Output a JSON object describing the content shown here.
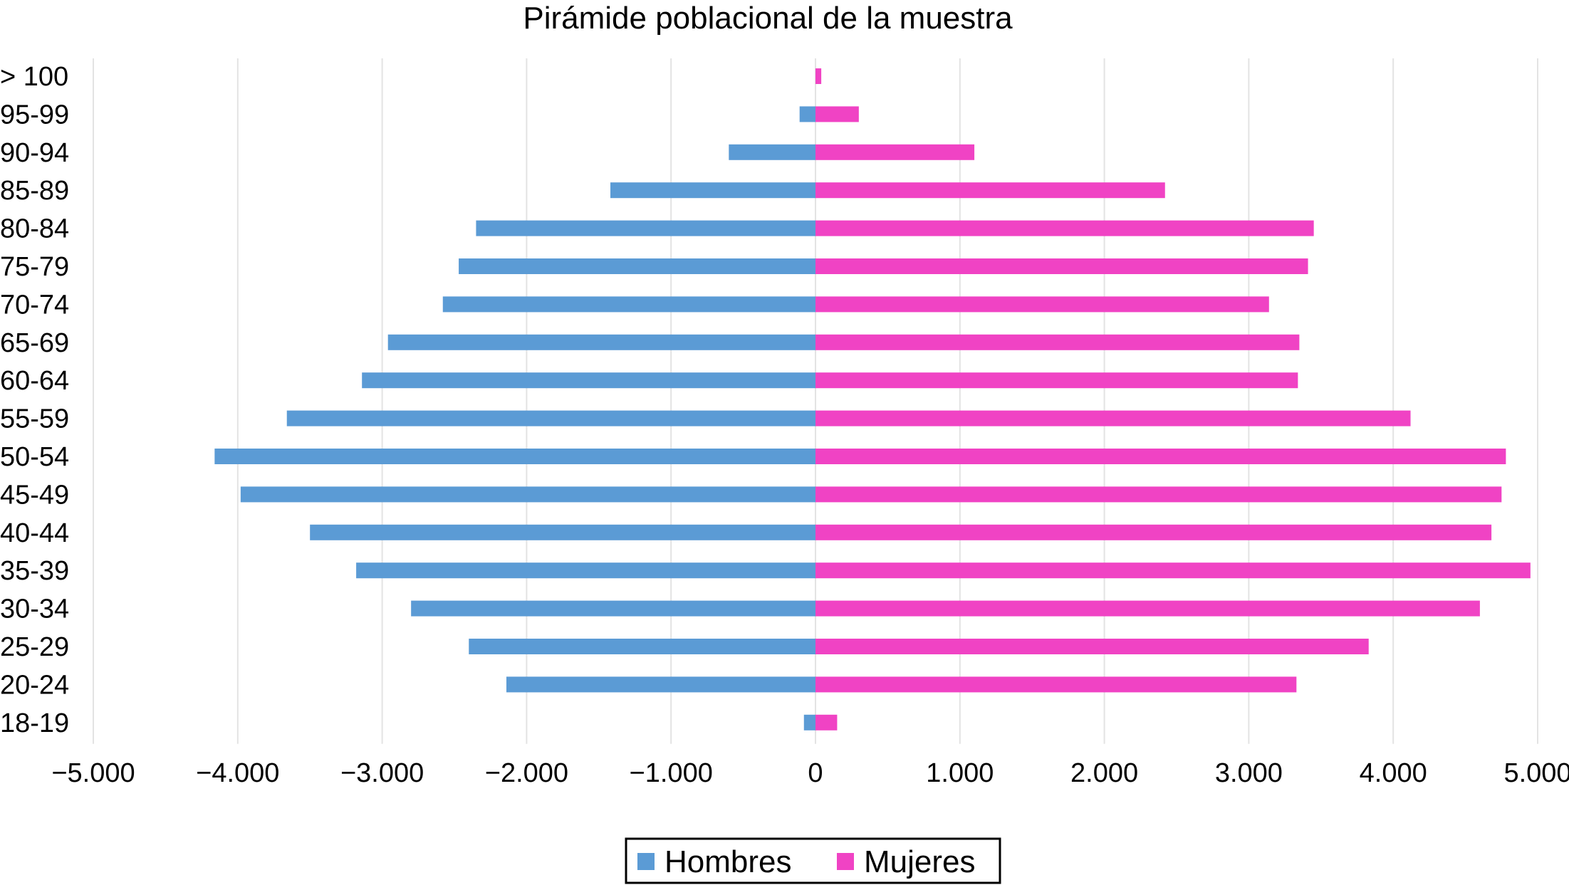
{
  "chart_data": {
    "type": "bar",
    "orientation": "horizontal",
    "title": "Pirámide poblacional de la muestra",
    "categories": [
      "> 100",
      "95-99",
      "90-94",
      "85-89",
      "80-84",
      "75-79",
      "70-74",
      "65-69",
      "60-64",
      "55-59",
      "50-54",
      "45-49",
      "40-44",
      "35-39",
      "30-34",
      "25-29",
      "20-24",
      "18-19"
    ],
    "series": [
      {
        "name": "Hombres",
        "color": "#5b9bd5",
        "values": [
          0,
          -110,
          -600,
          -1420,
          -2350,
          -2470,
          -2580,
          -2960,
          -3140,
          -3660,
          -4160,
          -3980,
          -3500,
          -3180,
          -2800,
          -2400,
          -2140,
          -80
        ]
      },
      {
        "name": "Mujeres",
        "color": "#f043c4",
        "values": [
          40,
          300,
          1100,
          2420,
          3450,
          3410,
          3140,
          3350,
          3340,
          4120,
          4780,
          4750,
          4680,
          4950,
          4600,
          3830,
          3330,
          150
        ]
      }
    ],
    "xlim": [
      -5000,
      5000
    ],
    "x_ticks": [
      -5000,
      -4000,
      -3000,
      -2000,
      -1000,
      0,
      1000,
      2000,
      3000,
      4000,
      5000
    ],
    "x_tick_labels": [
      "−5.000",
      "−4.000",
      "−3.000",
      "−2.000",
      "−1.000",
      "0",
      "1.000",
      "2.000",
      "3.000",
      "4.000",
      "5.000"
    ],
    "grid": "vertical",
    "legend_position": "bottom-center"
  }
}
